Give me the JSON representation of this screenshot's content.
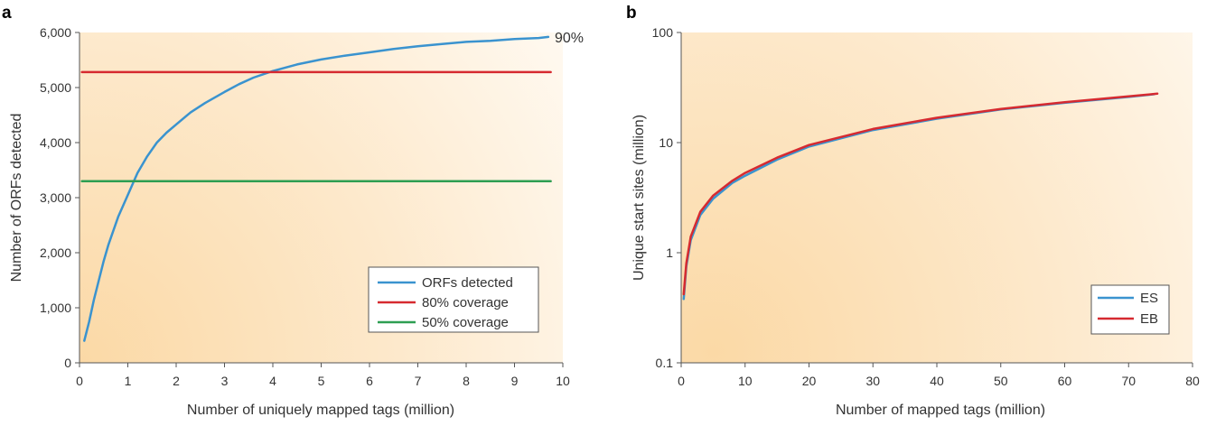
{
  "chart_data": [
    {
      "panel": "a",
      "type": "line",
      "xlabel": "Number of uniquely mapped tags (million)",
      "ylabel": "Number of ORFs detected",
      "xlim": [
        0,
        10
      ],
      "ylim": [
        0,
        6000
      ],
      "xticks": [
        "0",
        "1",
        "2",
        "3",
        "4",
        "5",
        "6",
        "7",
        "8",
        "9",
        "10"
      ],
      "yticks": [
        "0",
        "1,000",
        "2,000",
        "3,000",
        "4,000",
        "5,000",
        "6,000"
      ],
      "annotation": "90%",
      "legend_position": "bottom-right",
      "series": [
        {
          "name": "ORFs detected",
          "color": "#3a93cf",
          "kind": "curve",
          "x": [
            0.1,
            0.2,
            0.3,
            0.4,
            0.5,
            0.6,
            0.8,
            1.0,
            1.2,
            1.4,
            1.6,
            1.8,
            2.0,
            2.3,
            2.6,
            3.0,
            3.3,
            3.6,
            4.0,
            4.5,
            5.0,
            5.5,
            6.0,
            6.5,
            7.0,
            7.5,
            8.0,
            8.5,
            9.0,
            9.5,
            9.7
          ],
          "y": [
            400,
            750,
            1150,
            1500,
            1850,
            2150,
            2650,
            3050,
            3450,
            3750,
            4000,
            4180,
            4330,
            4550,
            4720,
            4920,
            5060,
            5180,
            5300,
            5420,
            5510,
            5580,
            5640,
            5700,
            5750,
            5790,
            5830,
            5850,
            5880,
            5900,
            5920
          ]
        },
        {
          "name": "80% coverage",
          "color": "#d62a30",
          "kind": "hline",
          "x": [
            0.05,
            9.75
          ],
          "y": [
            5280,
            5280
          ]
        },
        {
          "name": "50% coverage",
          "color": "#2e9e52",
          "kind": "hline",
          "x": [
            0.05,
            9.75
          ],
          "y": [
            3300,
            3300
          ]
        }
      ]
    },
    {
      "panel": "b",
      "type": "line",
      "xlabel": "Number of mapped tags (million)",
      "ylabel": "Unique start sites (million)",
      "xlim": [
        0,
        80
      ],
      "ylim": [
        0.1,
        100
      ],
      "yscale": "log",
      "xticks": [
        "0",
        "10",
        "20",
        "30",
        "40",
        "50",
        "60",
        "70",
        "80"
      ],
      "yticks": [
        "0.1",
        "1",
        "10",
        "100"
      ],
      "legend_position": "bottom-right",
      "series": [
        {
          "name": "ES",
          "color": "#3a93cf",
          "kind": "curve",
          "x": [
            0.4,
            0.8,
            1.5,
            3,
            5,
            8,
            10,
            15,
            20,
            30,
            40,
            50,
            60,
            70,
            74
          ],
          "y": [
            0.38,
            0.75,
            1.3,
            2.2,
            3.1,
            4.3,
            5.0,
            7.0,
            9.2,
            13.0,
            16.5,
            20.0,
            23.0,
            26.0,
            27.5
          ]
        },
        {
          "name": "EB",
          "color": "#d62a30",
          "kind": "curve",
          "x": [
            0.4,
            0.8,
            1.5,
            3,
            5,
            8,
            10,
            15,
            20,
            30,
            40,
            50,
            60,
            70,
            74.5
          ],
          "y": [
            0.42,
            0.8,
            1.4,
            2.35,
            3.3,
            4.5,
            5.3,
            7.3,
            9.5,
            13.3,
            16.8,
            20.2,
            23.3,
            26.3,
            27.8
          ]
        }
      ]
    }
  ]
}
